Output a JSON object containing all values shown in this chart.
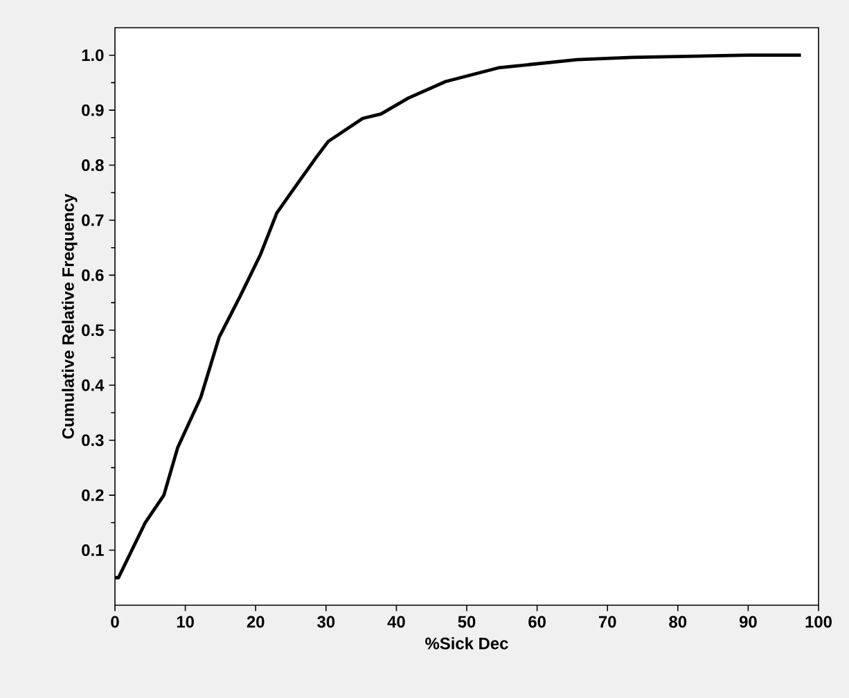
{
  "chart_data": {
    "type": "line",
    "xlabel": "%Sick Dec",
    "ylabel": "Cumulative Relative Frequency",
    "series": [
      {
        "color": "#000000",
        "x": [
          0,
          0.5,
          4.3,
          6.95,
          8.9,
          12.2,
          14.8,
          17.8,
          20.7,
          23.0,
          25.3,
          28.6,
          30.3,
          35.2,
          37.8,
          41.7,
          47.0,
          54.5,
          65.7,
          73.5,
          90,
          97.5
        ],
        "values": [
          0.05,
          0.05,
          0.15,
          0.2,
          0.286,
          0.378,
          0.487,
          0.562,
          0.638,
          0.713,
          0.755,
          0.814,
          0.843,
          0.885,
          0.893,
          0.922,
          0.952,
          0.977,
          0.992,
          0.996,
          1.0,
          1.0
        ]
      }
    ],
    "xlim": [
      0,
      100
    ],
    "ylim": [
      0,
      1.05
    ],
    "xticks": [
      0,
      10,
      20,
      30,
      40,
      50,
      60,
      70,
      80,
      90,
      100
    ],
    "yticks": [
      0.1,
      0.2,
      0.3,
      0.4,
      0.5,
      0.6,
      0.7,
      0.8,
      0.9,
      {
        "value": 1,
        "label": "1.0"
      }
    ],
    "grid": false,
    "marker": "none",
    "line_style": "solid"
  }
}
